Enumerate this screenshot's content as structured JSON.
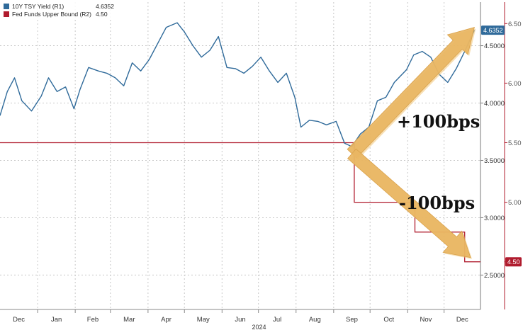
{
  "chart_data": {
    "type": "line",
    "legend": {
      "placement": "top-left",
      "entries": [
        {
          "label": "10Y TSY Yield (R1)",
          "value": "4.6352",
          "color": "#2f6a9a"
        },
        {
          "label": "Fed Funds Upper Bound (R2)",
          "value": "4.50",
          "color": "#b01c2e"
        }
      ]
    },
    "x_axis": {
      "month_labels": [
        "Dec",
        "Jan",
        "Feb",
        "Mar",
        "Apr",
        "May",
        "Jun",
        "Jul",
        "Aug",
        "Sep",
        "Oct",
        "Nov",
        "Dec"
      ],
      "year_label": "2024",
      "range": [
        "2023-12-01",
        "2024-12-31"
      ]
    },
    "y_axis_r1": {
      "name": "10Y TSY Yield",
      "ticks": [
        "2.5000",
        "3.0000",
        "3.5000",
        "4.0000",
        "4.5000"
      ],
      "range": [
        2.2,
        4.88
      ]
    },
    "y_axis_r2": {
      "name": "Fed Funds Upper Bound",
      "ticks": [
        "4.50",
        "5.00",
        "5.50",
        "6.00",
        "6.50"
      ],
      "range": [
        4.1,
        6.68
      ]
    },
    "grid": true,
    "series": [
      {
        "name": "10Y TSY Yield (R1)",
        "axis": "R1",
        "color": "#2f6a9a",
        "last_value_badge": "4.6352",
        "dates": [
          "2023-12-01",
          "2023-12-07",
          "2023-12-13",
          "2023-12-19",
          "2023-12-27",
          "2024-01-04",
          "2024-01-10",
          "2024-01-17",
          "2024-01-24",
          "2024-01-31",
          "2024-02-05",
          "2024-02-12",
          "2024-02-20",
          "2024-02-27",
          "2024-03-05",
          "2024-03-12",
          "2024-03-19",
          "2024-03-26",
          "2024-04-02",
          "2024-04-10",
          "2024-04-16",
          "2024-04-25",
          "2024-05-01",
          "2024-05-08",
          "2024-05-15",
          "2024-05-22",
          "2024-05-29",
          "2024-06-05",
          "2024-06-12",
          "2024-06-19",
          "2024-06-26",
          "2024-07-03",
          "2024-07-10",
          "2024-07-17",
          "2024-07-24",
          "2024-07-31",
          "2024-08-05",
          "2024-08-12",
          "2024-08-19",
          "2024-08-26",
          "2024-09-03",
          "2024-09-10",
          "2024-09-16",
          "2024-09-23",
          "2024-09-30",
          "2024-10-07",
          "2024-10-14",
          "2024-10-21",
          "2024-10-31",
          "2024-11-06",
          "2024-11-13",
          "2024-11-20",
          "2024-11-27",
          "2024-12-04",
          "2024-12-11",
          "2024-12-18",
          "2024-12-26"
        ],
        "values": [
          3.89,
          4.1,
          4.22,
          4.02,
          3.93,
          4.06,
          4.22,
          4.1,
          4.14,
          3.95,
          4.12,
          4.31,
          4.28,
          4.26,
          4.22,
          4.15,
          4.35,
          4.28,
          4.38,
          4.54,
          4.66,
          4.7,
          4.62,
          4.5,
          4.4,
          4.46,
          4.58,
          4.31,
          4.3,
          4.26,
          4.32,
          4.4,
          4.28,
          4.18,
          4.26,
          4.05,
          3.79,
          3.85,
          3.84,
          3.81,
          3.84,
          3.65,
          3.62,
          3.73,
          3.79,
          4.02,
          4.05,
          4.18,
          4.29,
          4.42,
          4.45,
          4.4,
          4.25,
          4.18,
          4.3,
          4.45,
          4.6352
        ]
      },
      {
        "name": "Fed Funds Upper Bound (R2)",
        "axis": "R2",
        "color": "#b01c2e",
        "step": true,
        "last_value_badge": "4.50",
        "dates": [
          "2023-12-01",
          "2024-09-18",
          "2024-11-07",
          "2024-12-18",
          "2024-12-31"
        ],
        "values": [
          5.5,
          5.0,
          4.75,
          4.5,
          4.5
        ]
      }
    ],
    "annotations": [
      {
        "text": "+100bps"
      },
      {
        "text": "-100bps"
      }
    ]
  }
}
